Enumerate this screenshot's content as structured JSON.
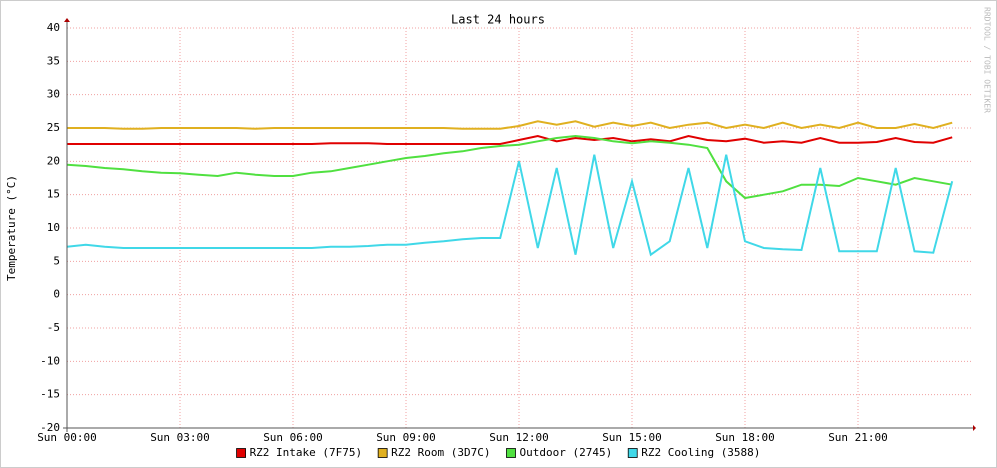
{
  "chart_data": {
    "type": "line",
    "title": "Last 24 hours",
    "watermark": "RRDTOOL / TOBI OETIKER",
    "y_label": "Temperature (°C)",
    "x": [
      0,
      0.5,
      1,
      1.5,
      2,
      2.5,
      3,
      3.5,
      4,
      4.5,
      5,
      5.5,
      6,
      6.5,
      7,
      7.5,
      8,
      8.5,
      9,
      9.5,
      10,
      10.5,
      11,
      11.5,
      12,
      12.5,
      13,
      13.5,
      14,
      14.5,
      15,
      15.5,
      16,
      16.5,
      17,
      17.5,
      18,
      18.5,
      19,
      19.5,
      20,
      20.5,
      21,
      21.5,
      22,
      22.5,
      23,
      23.5
    ],
    "xlim": [
      0,
      24
    ],
    "xticks": [
      {
        "value": 0,
        "label": "Sun 00:00"
      },
      {
        "value": 3,
        "label": "Sun 03:00"
      },
      {
        "value": 6,
        "label": "Sun 06:00"
      },
      {
        "value": 9,
        "label": "Sun 09:00"
      },
      {
        "value": 12,
        "label": "Sun 12:00"
      },
      {
        "value": 15,
        "label": "Sun 15:00"
      },
      {
        "value": 18,
        "label": "Sun 18:00"
      },
      {
        "value": 21,
        "label": "Sun 21:00"
      }
    ],
    "ylim": [
      -20,
      40
    ],
    "yticks": [
      -20,
      -15,
      -10,
      -5,
      0,
      5,
      10,
      15,
      20,
      25,
      30,
      35,
      40
    ],
    "grid": true,
    "legend": "bottom",
    "series": [
      {
        "name": "RZ2 Intake (7F75)",
        "color": "#e00000",
        "values": [
          22.6,
          22.6,
          22.6,
          22.6,
          22.6,
          22.6,
          22.6,
          22.6,
          22.6,
          22.6,
          22.6,
          22.6,
          22.6,
          22.6,
          22.7,
          22.7,
          22.7,
          22.6,
          22.6,
          22.6,
          22.6,
          22.6,
          22.6,
          22.6,
          23.2,
          23.8,
          23,
          23.5,
          23.2,
          23.5,
          23,
          23.3,
          23,
          23.8,
          23.2,
          23,
          23.4,
          22.8,
          23,
          22.8,
          23.5,
          22.8,
          22.8,
          22.9,
          23.5,
          22.9,
          22.8,
          23.6
        ]
      },
      {
        "name": "RZ2 Room (3D7C)",
        "color": "#e0b020",
        "values": [
          25,
          25,
          25,
          24.9,
          24.9,
          25,
          25,
          25,
          25,
          25,
          24.9,
          25,
          25,
          25,
          25,
          25,
          25,
          25,
          25,
          25,
          25,
          24.9,
          24.9,
          24.9,
          25.3,
          26,
          25.5,
          26,
          25.2,
          25.8,
          25.3,
          25.8,
          25,
          25.5,
          25.8,
          25,
          25.5,
          25,
          25.8,
          25,
          25.5,
          25,
          25.8,
          25,
          25,
          25.6,
          25,
          25.8
        ]
      },
      {
        "name": "Outdoor (2745)",
        "color": "#50e040",
        "values": [
          19.5,
          19.3,
          19,
          18.8,
          18.5,
          18.3,
          18.2,
          18,
          17.8,
          18.3,
          18,
          17.8,
          17.8,
          18.3,
          18.5,
          19,
          19.5,
          20,
          20.5,
          20.8,
          21.2,
          21.5,
          22,
          22.3,
          22.5,
          23,
          23.5,
          23.8,
          23.5,
          23,
          22.7,
          23,
          22.8,
          22.5,
          22,
          17,
          14.5,
          15,
          15.5,
          16.5,
          16.5,
          16.3,
          17.5,
          17,
          16.5,
          17.5,
          17,
          16.5
        ]
      },
      {
        "name": "RZ2 Cooling (3588)",
        "color": "#40d8e8",
        "values": [
          7.2,
          7.5,
          7.2,
          7,
          7,
          7,
          7,
          7,
          7,
          7,
          7,
          7,
          7,
          7,
          7.2,
          7.2,
          7.3,
          7.5,
          7.5,
          7.8,
          8,
          8.3,
          8.5,
          8.5,
          20,
          7,
          19,
          6,
          21,
          7,
          17,
          6,
          8,
          19,
          7,
          21,
          8,
          7,
          6.8,
          6.7,
          19,
          6.5,
          6.5,
          6.5,
          19,
          6.5,
          6.3,
          17
        ]
      }
    ]
  }
}
